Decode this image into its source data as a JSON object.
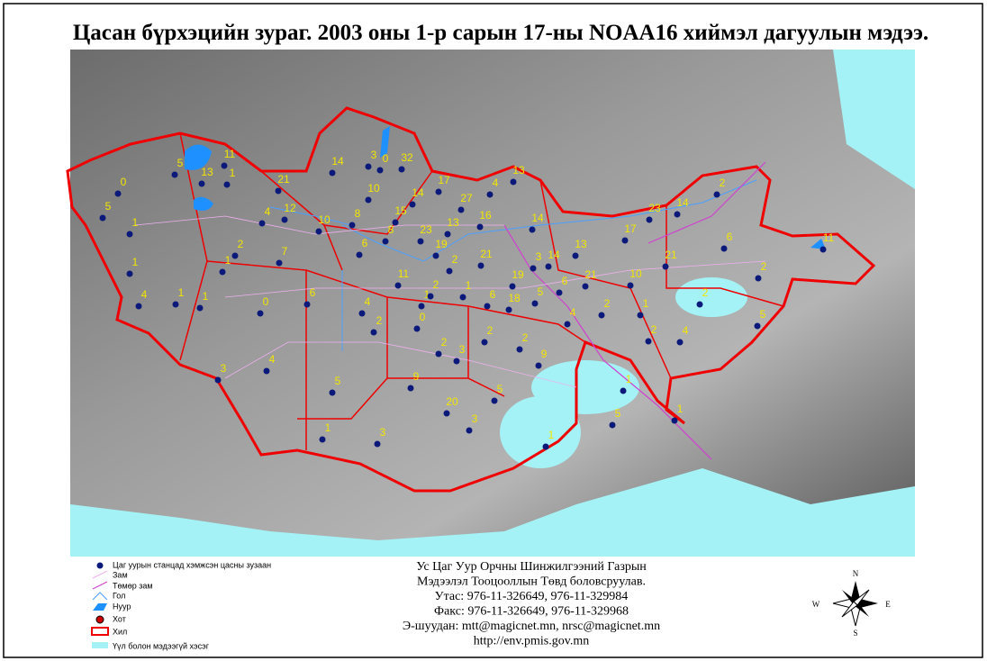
{
  "title": "Цасан бүрхэцийн зураг. 2003 оны 1-р сарын 17-ны NOAA16 хиймэл дагуулын мэдээ.",
  "stations": [
    0,
    5,
    1,
    5,
    13,
    11,
    1,
    21,
    4,
    12,
    14,
    3,
    0,
    32,
    10,
    14,
    17,
    27,
    4,
    13,
    10,
    8,
    15,
    23,
    13,
    16,
    14,
    19,
    2,
    21,
    19,
    3,
    14,
    13,
    21,
    6,
    10,
    17,
    23,
    14,
    2,
    6,
    21,
    11,
    2,
    2,
    5,
    2,
    1,
    7,
    1,
    4,
    1,
    1,
    0,
    6,
    6,
    8,
    11,
    1,
    2,
    1,
    6,
    18,
    5,
    4,
    2,
    0,
    2,
    3,
    2,
    2,
    9,
    4,
    2,
    1,
    2,
    4,
    3,
    4,
    5,
    9,
    20,
    5,
    3,
    3,
    1,
    1,
    5,
    1,
    1
  ],
  "legend": [
    "Цаг уурын станцад хэмжсэн цасны зузаан",
    "Зам",
    "Төмөр зам",
    "Гол",
    "Нуур",
    "Хот",
    "Хил",
    "Үүл болон мэдээгүй хэсэг"
  ],
  "info": [
    "Ус Цаг Уур Орчны Шинжилгээний Газрын",
    "Мэдээлэл Тооцооллын Төвд боловсруулав.",
    "Утас: 976-11-326649, 976-11-329984",
    "Факс: 976-11-326649, 976-11-329968",
    "Э-шуудан: mtt@magicnet.mn, nrsc@magicnet.mn",
    "http://env.pmis.gov.mn"
  ],
  "compass": {
    "n": "N",
    "s": "S",
    "w": "W",
    "e": "E"
  }
}
